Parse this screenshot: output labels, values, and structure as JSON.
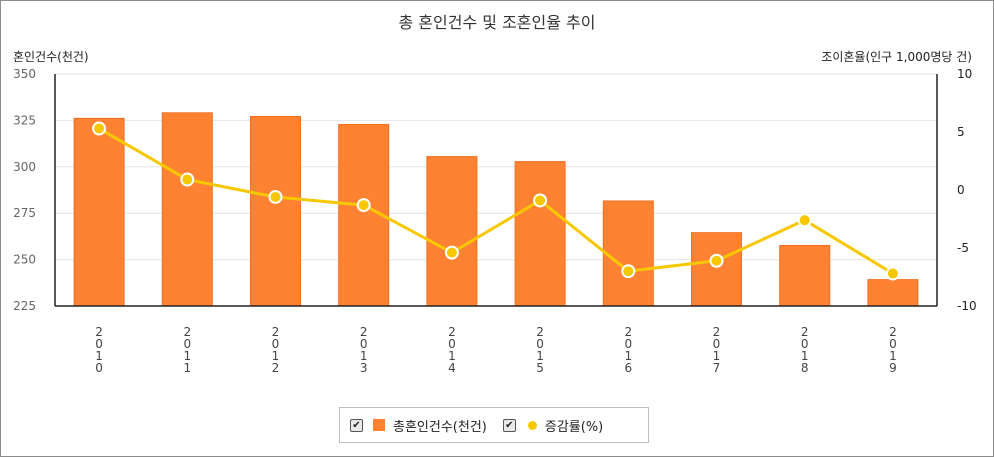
{
  "chart_data": {
    "type": "bar+line",
    "title": "총 혼인건수 및 조혼인율 추이",
    "ylabel_left": "혼인건수(천건)",
    "ylabel_right": "조이혼율(인구 1,000명당 건)",
    "categories": [
      "2010",
      "2011",
      "2012",
      "2013",
      "2014",
      "2015",
      "2016",
      "2017",
      "2018",
      "2019"
    ],
    "ylim_left": [
      225,
      350
    ],
    "yticks_left": [
      225,
      250,
      275,
      300,
      325,
      350
    ],
    "ylim_right": [
      -10,
      10
    ],
    "yticks_right": [
      -10,
      -5,
      0,
      5,
      10
    ],
    "series": [
      {
        "name": "총혼인건수(천건)",
        "type": "bar",
        "axis": "left",
        "color": "#ff8232",
        "values": [
          326.1,
          329.1,
          327.1,
          322.8,
          305.5,
          302.8,
          281.6,
          264.5,
          257.6,
          239.2
        ]
      },
      {
        "name": "증감률(%)",
        "type": "line",
        "axis": "right",
        "color": "#f7c800",
        "values": [
          5.3,
          0.9,
          -0.6,
          -1.3,
          -5.4,
          -0.9,
          -7.0,
          -6.1,
          -2.6,
          -7.2
        ]
      }
    ]
  },
  "legend": {
    "bar_label": "총혼인건수(천건)",
    "line_label": "증감률(%)",
    "check_mark": "✔"
  }
}
